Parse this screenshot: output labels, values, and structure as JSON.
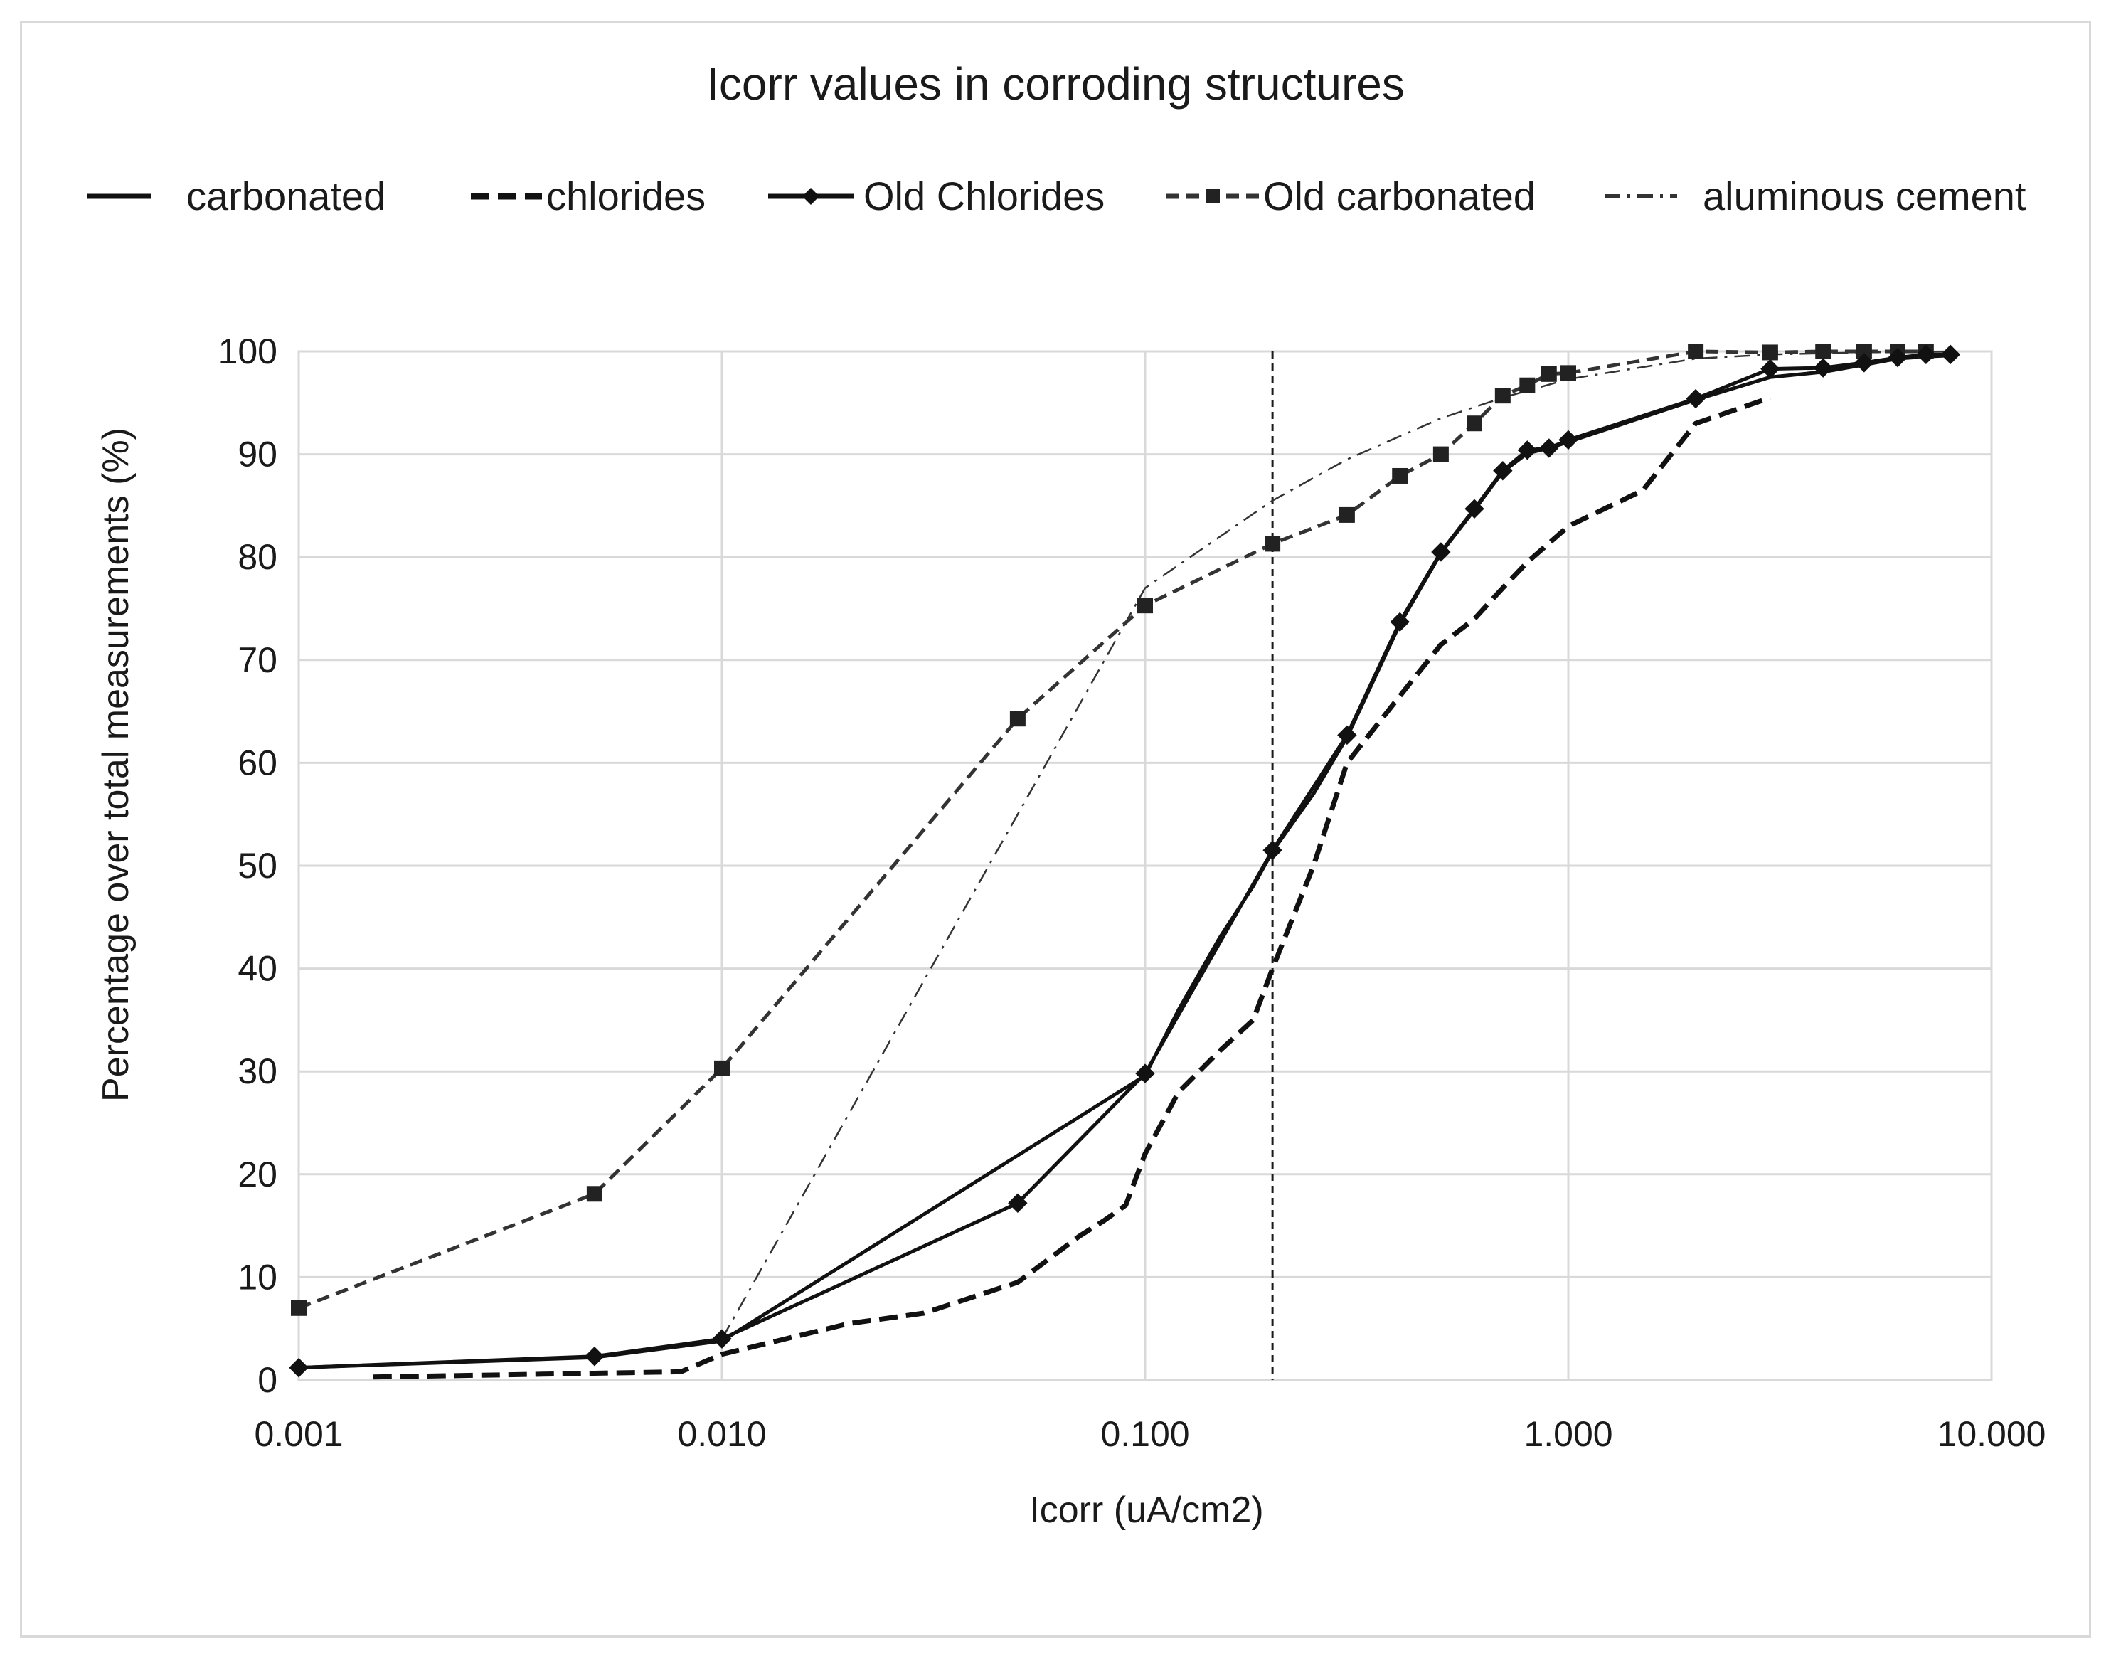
{
  "chart_data": {
    "type": "line",
    "title": "Icorr values in corroding structures",
    "xlabel": "Icorr (uA/cm2)",
    "ylabel": "Percentage over total measurements (%)",
    "x_scale": "log",
    "xlim": [
      0.001,
      10
    ],
    "ylim": [
      0,
      100
    ],
    "x_ticks": [
      0.001,
      0.01,
      0.1,
      1,
      10
    ],
    "x_tick_labels": [
      "0.001",
      "0.010",
      "0.100",
      "1.000",
      "10.000"
    ],
    "y_ticks": [
      0,
      10,
      20,
      30,
      40,
      50,
      60,
      70,
      80,
      90,
      100
    ],
    "y_tick_labels": [
      "0",
      "10",
      "20",
      "30",
      "40",
      "50",
      "60",
      "70",
      "80",
      "90",
      "100"
    ],
    "grid": true,
    "legend_position": "top",
    "reference_line_x": 0.2,
    "series": [
      {
        "name": "carbonated",
        "style": "solid",
        "marker": "none",
        "x": [
          0.001,
          0.005,
          0.01,
          0.1,
          0.12,
          0.15,
          0.18,
          0.2,
          0.25,
          0.3,
          0.4,
          0.5,
          0.6,
          0.7,
          0.8,
          0.9,
          1.0,
          2.0,
          3.0,
          4.0,
          5.0,
          6.0,
          7.0,
          8.0
        ],
        "y": [
          1.2,
          2.2,
          3.8,
          29.6,
          36,
          43,
          48,
          51.4,
          57,
          62.5,
          73.5,
          80.4,
          84.6,
          88.3,
          90.1,
          90.6,
          91.2,
          95.3,
          97.5,
          98,
          98.7,
          99.3,
          99.5,
          99.6
        ]
      },
      {
        "name": "chlorides",
        "style": "dashed",
        "marker": "none",
        "x": [
          0.0015,
          0.003,
          0.008,
          0.01,
          0.02,
          0.03,
          0.05,
          0.07,
          0.08,
          0.09,
          0.1,
          0.12,
          0.15,
          0.18,
          0.2,
          0.25,
          0.3,
          0.4,
          0.5,
          0.6,
          0.7,
          0.8,
          1.0,
          1.5,
          2.0,
          3.0
        ],
        "y": [
          0.3,
          0.5,
          0.8,
          2.5,
          5.5,
          6.5,
          9.5,
          14,
          15.5,
          17,
          22,
          28,
          32,
          35,
          40,
          50,
          60,
          66.5,
          71.5,
          74,
          77,
          79.5,
          83,
          86.5,
          93,
          95.5
        ]
      },
      {
        "name": "Old Chlorides",
        "style": "solid",
        "marker": "diamond",
        "x": [
          0.001,
          0.005,
          0.01,
          0.05,
          0.1,
          0.2,
          0.3,
          0.4,
          0.5,
          0.6,
          0.7,
          0.8,
          0.9,
          1.0,
          2.0,
          3.0,
          4.0,
          5.0,
          6.0,
          7.0,
          8.0
        ],
        "y": [
          1.2,
          2.3,
          4.0,
          17.2,
          29.8,
          51.5,
          62.7,
          73.7,
          80.5,
          84.7,
          88.4,
          90.4,
          90.6,
          91.4,
          95.4,
          98.3,
          98.4,
          98.9,
          99.4,
          99.7,
          99.7
        ]
      },
      {
        "name": "Old carbonated",
        "style": "dashed",
        "marker": "square",
        "x": [
          0.001,
          0.005,
          0.01,
          0.05,
          0.1,
          0.2,
          0.3,
          0.4,
          0.5,
          0.6,
          0.7,
          0.8,
          0.9,
          1.0,
          2.0,
          3.0,
          4.0,
          5.0,
          6.0,
          7.0
        ],
        "y": [
          7.0,
          18.1,
          30.3,
          64.3,
          75.3,
          81.3,
          84.1,
          87.9,
          90.0,
          93.0,
          95.7,
          96.7,
          97.8,
          97.9,
          100,
          99.9,
          100,
          100,
          100,
          100
        ]
      },
      {
        "name": "aluminous cement",
        "style": "dashdot",
        "marker": "none",
        "x": [
          0.01,
          0.05,
          0.1,
          0.2,
          0.3,
          0.5,
          0.7,
          1.0,
          2.0,
          3.0,
          5.0,
          8.0
        ],
        "y": [
          4.0,
          55,
          77,
          85.5,
          89.5,
          93.5,
          95.5,
          97.3,
          99.3,
          99.7,
          99.9,
          100
        ]
      }
    ]
  }
}
